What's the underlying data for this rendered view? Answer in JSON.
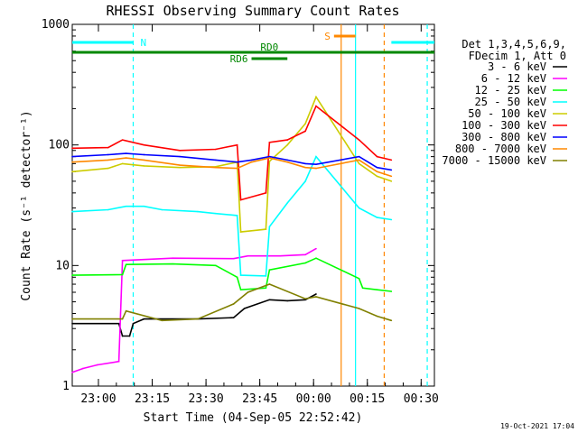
{
  "chart_data": {
    "type": "line",
    "title": "RHESSI Observing Summary Count Rates",
    "xlabel": "Start Time (04-Sep-05 22:52:42)",
    "ylabel": "Count Rate (s⁻¹ detector⁻¹)",
    "yscale": "log",
    "ylim": [
      1,
      1000
    ],
    "xlim_minutes_after_22_52_42": [
      0,
      101
    ],
    "x_ticks": [
      "23:00",
      "23:15",
      "23:30",
      "23:45",
      "00:00",
      "00:15",
      "00:30"
    ],
    "y_ticks": [
      "1",
      "10",
      "100",
      "1000"
    ],
    "legend_header": [
      "Det 1,3,4,5,6,9,",
      "FDecim 1, Att 0"
    ],
    "legend_position": "right",
    "footer_date": "19-Oct-2021 17:04",
    "series": [
      {
        "name": "3 - 6 keV",
        "color": "#000000",
        "points": [
          [
            0,
            3.3
          ],
          [
            13,
            3.3
          ],
          [
            14,
            2.6
          ],
          [
            16,
            2.6
          ],
          [
            17,
            3.3
          ],
          [
            20,
            3.6
          ],
          [
            35,
            3.6
          ],
          [
            45,
            3.7
          ],
          [
            48,
            4.4
          ],
          [
            55,
            5.2
          ],
          [
            60,
            5.1
          ],
          [
            65,
            5.2
          ],
          [
            68,
            5.8
          ]
        ]
      },
      {
        "name": "6 - 12 keV",
        "color": "#ff00ff",
        "points": [
          [
            0,
            1.3
          ],
          [
            3,
            1.4
          ],
          [
            7,
            1.5
          ],
          [
            13,
            1.6
          ],
          [
            14,
            11
          ],
          [
            28,
            11.5
          ],
          [
            45,
            11.4
          ],
          [
            49,
            12
          ],
          [
            58,
            12
          ],
          [
            65,
            12.3
          ],
          [
            68,
            13.8
          ]
        ]
      },
      {
        "name": "12 - 25 keV",
        "color": "#00ff00",
        "points": [
          [
            0,
            8.3
          ],
          [
            14,
            8.4
          ],
          [
            15,
            10.2
          ],
          [
            28,
            10.3
          ],
          [
            40,
            10
          ],
          [
            46,
            8
          ],
          [
            47,
            6.3
          ],
          [
            54,
            6.5
          ],
          [
            55,
            9.2
          ],
          [
            65,
            10.5
          ],
          [
            68,
            11.5
          ],
          [
            80,
            7.8
          ],
          [
            81,
            6.5
          ],
          [
            85,
            6.3
          ],
          [
            89,
            6.1
          ]
        ]
      },
      {
        "name": "25 - 50 keV",
        "color": "#00ffff",
        "points": [
          [
            0,
            28
          ],
          [
            10,
            29
          ],
          [
            15,
            31
          ],
          [
            20,
            31
          ],
          [
            25,
            29
          ],
          [
            35,
            28
          ],
          [
            40,
            27
          ],
          [
            46,
            26
          ],
          [
            47,
            8.3
          ],
          [
            54,
            8.2
          ],
          [
            55,
            21
          ],
          [
            60,
            33
          ],
          [
            65,
            50
          ],
          [
            68,
            80
          ],
          [
            80,
            30
          ],
          [
            85,
            25
          ],
          [
            89,
            24
          ]
        ]
      },
      {
        "name": "50 - 100 keV",
        "color": "#cccc00",
        "points": [
          [
            0,
            60
          ],
          [
            10,
            64
          ],
          [
            14,
            70
          ],
          [
            20,
            67
          ],
          [
            30,
            65
          ],
          [
            40,
            66
          ],
          [
            46,
            72
          ],
          [
            47,
            19
          ],
          [
            54,
            20
          ],
          [
            55,
            73
          ],
          [
            60,
            100
          ],
          [
            65,
            150
          ],
          [
            68,
            250
          ],
          [
            80,
            70
          ],
          [
            85,
            55
          ],
          [
            89,
            50
          ]
        ]
      },
      {
        "name": "100 - 300 keV",
        "color": "#ff0000",
        "points": [
          [
            0,
            94
          ],
          [
            10,
            95
          ],
          [
            14,
            110
          ],
          [
            20,
            100
          ],
          [
            30,
            90
          ],
          [
            40,
            92
          ],
          [
            46,
            100
          ],
          [
            47,
            35
          ],
          [
            54,
            40
          ],
          [
            55,
            105
          ],
          [
            60,
            110
          ],
          [
            65,
            130
          ],
          [
            68,
            210
          ],
          [
            80,
            110
          ],
          [
            85,
            80
          ],
          [
            89,
            75
          ]
        ]
      },
      {
        "name": "300 - 800 keV",
        "color": "#0000ff",
        "points": [
          [
            0,
            80
          ],
          [
            10,
            83
          ],
          [
            15,
            85
          ],
          [
            20,
            83
          ],
          [
            30,
            80
          ],
          [
            40,
            75
          ],
          [
            46,
            72
          ],
          [
            50,
            75
          ],
          [
            55,
            80
          ],
          [
            60,
            75
          ],
          [
            65,
            70
          ],
          [
            68,
            69
          ],
          [
            80,
            80
          ],
          [
            85,
            65
          ],
          [
            89,
            62
          ]
        ]
      },
      {
        "name": "800 - 7000 keV",
        "color": "#ff8800",
        "points": [
          [
            0,
            72
          ],
          [
            10,
            75
          ],
          [
            15,
            78
          ],
          [
            20,
            75
          ],
          [
            30,
            68
          ],
          [
            40,
            65
          ],
          [
            46,
            64
          ],
          [
            50,
            72
          ],
          [
            55,
            78
          ],
          [
            60,
            72
          ],
          [
            65,
            65
          ],
          [
            68,
            64
          ],
          [
            80,
            75
          ],
          [
            85,
            60
          ],
          [
            89,
            55
          ]
        ]
      },
      {
        "name": "7000 - 15000 keV",
        "color": "#808000",
        "points": [
          [
            0,
            3.6
          ],
          [
            14,
            3.6
          ],
          [
            15,
            4.2
          ],
          [
            25,
            3.5
          ],
          [
            35,
            3.6
          ],
          [
            45,
            4.8
          ],
          [
            49,
            6
          ],
          [
            55,
            7
          ],
          [
            65,
            5.3
          ],
          [
            68,
            5.5
          ],
          [
            80,
            4.4
          ],
          [
            85,
            3.8
          ],
          [
            89,
            3.5
          ]
        ]
      }
    ],
    "status_bars": [
      {
        "label": "N",
        "color": "#00ffff",
        "spans": [
          [
            0,
            17
          ],
          [
            89,
            101
          ]
        ]
      },
      {
        "label": "RD0",
        "color": "#008800",
        "spans": [
          [
            0,
            101
          ]
        ]
      },
      {
        "label": "RD6",
        "color": "#008800",
        "spans": [
          [
            50,
            60
          ]
        ]
      },
      {
        "label": "S",
        "color": "#ff8800",
        "spans": [
          [
            73,
            79
          ]
        ]
      }
    ],
    "vertical_markers": [
      {
        "color": "#00ffff",
        "style": "dashed",
        "x": 17
      },
      {
        "color": "#ff8800",
        "style": "solid",
        "x": 75
      },
      {
        "color": "#00ffff",
        "style": "solid",
        "x": 79
      },
      {
        "color": "#ff8800",
        "style": "dashed",
        "x": 87
      },
      {
        "color": "#00ffff",
        "style": "dashed",
        "x": 99
      }
    ]
  }
}
